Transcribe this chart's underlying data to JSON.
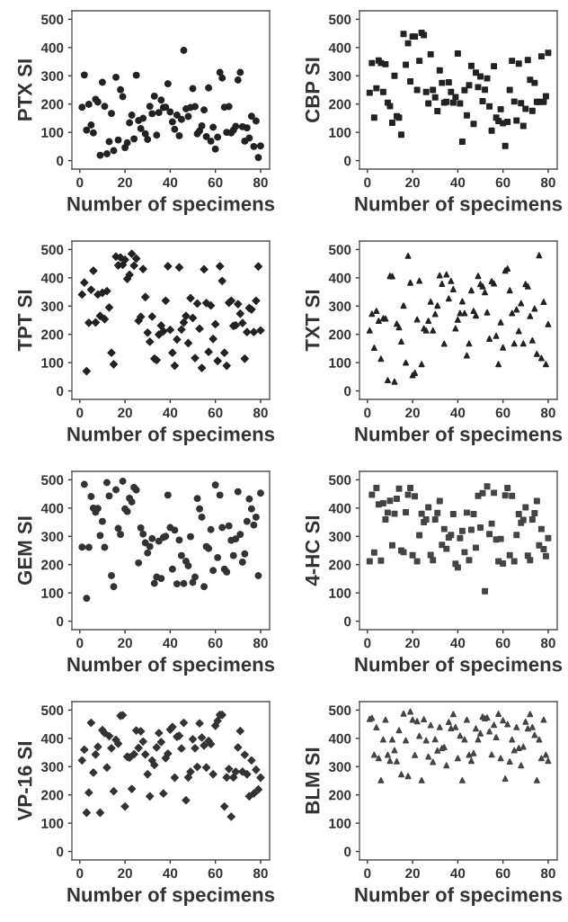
{
  "chart_data": [
    {
      "type": "scatter",
      "ylabel": "PTX SI",
      "xlabel": "Number of specimens",
      "marker": "circle",
      "xlim": [
        -3.5,
        84
      ],
      "ylim": [
        -30,
        530
      ],
      "xticks": [
        0,
        20,
        40,
        60,
        80
      ],
      "yticks": [
        0,
        100,
        200,
        300,
        400,
        500
      ],
      "grid": false,
      "x": [
        1,
        2,
        3,
        4,
        5,
        6,
        7,
        8,
        9,
        10,
        11,
        12,
        13,
        14,
        15,
        16,
        17,
        18,
        19,
        20,
        21,
        22,
        23,
        24,
        25,
        26,
        27,
        28,
        29,
        30,
        31,
        32,
        33,
        34,
        35,
        36,
        37,
        38,
        39,
        40,
        41,
        42,
        43,
        44,
        45,
        46,
        47,
        48,
        49,
        50,
        51,
        52,
        53,
        54,
        55,
        56,
        57,
        58,
        59,
        60,
        61,
        62,
        63,
        64,
        65,
        66,
        67,
        68,
        69,
        70,
        71,
        72,
        73,
        74,
        75,
        76,
        77,
        78,
        79,
        80
      ],
      "series": [
        {
          "color": "#222222",
          "values": [
            189,
            303,
            108,
            199,
            126,
            98,
            217,
            207,
            19,
            277,
            192,
            24,
            67,
            167,
            35,
            295,
            73,
            251,
            226,
            46,
            63,
            134,
            161,
            77,
            302,
            142,
            113,
            150,
            95,
            75,
            192,
            166,
            228,
            90,
            170,
            214,
            188,
            189,
            272,
            172,
            137,
            111,
            161,
            88,
            146,
            390,
            183,
            156,
            188,
            255,
            191,
            95,
            105,
            123,
            179,
            85,
            257,
            69,
            118,
            41,
            83,
            312,
            292,
            189,
            100,
            191,
            98,
            108,
            121,
            285,
            312,
            120,
            69,
            116,
            80,
            157,
            50,
            140,
            11,
            52
          ]
        }
      ]
    },
    {
      "type": "scatter",
      "ylabel": "CBP SI",
      "xlabel": "Number of specimens",
      "marker": "square",
      "xlim": [
        -3.5,
        84
      ],
      "ylim": [
        -30,
        530
      ],
      "xticks": [
        0,
        20,
        40,
        60,
        80
      ],
      "yticks": [
        0,
        100,
        200,
        300,
        400,
        500
      ],
      "grid": false,
      "x": [
        1,
        2,
        3,
        4,
        5,
        6,
        7,
        8,
        9,
        10,
        11,
        12,
        13,
        14,
        15,
        16,
        17,
        18,
        19,
        20,
        21,
        22,
        23,
        24,
        25,
        26,
        27,
        28,
        29,
        30,
        31,
        32,
        33,
        34,
        35,
        36,
        37,
        38,
        39,
        40,
        41,
        42,
        43,
        44,
        45,
        46,
        47,
        48,
        49,
        50,
        51,
        52,
        53,
        54,
        55,
        56,
        57,
        58,
        59,
        60,
        61,
        62,
        63,
        64,
        65,
        66,
        67,
        68,
        69,
        70,
        71,
        72,
        73,
        74,
        75,
        76,
        77,
        78,
        79,
        80
      ],
      "series": [
        {
          "color": "#222222",
          "values": [
            240,
            345,
            152,
            256,
            354,
            345,
            243,
            341,
            205,
            193,
            134,
            300,
            157,
            152,
            92,
            448,
            339,
            415,
            280,
            439,
            439,
            250,
            353,
            452,
            444,
            243,
            202,
            376,
            250,
            224,
            175,
            319,
            275,
            205,
            208,
            277,
            243,
            205,
            225,
            379,
            202,
            67,
            249,
            160,
            267,
            335,
            130,
            311,
            260,
            298,
            210,
            251,
            291,
            192,
            106,
            334,
            152,
            140,
            182,
            132,
            52,
            137,
            250,
            353,
            209,
            142,
            343,
            203,
            123,
            183,
            356,
            286,
            176,
            275,
            208,
            208,
            369,
            208,
            228,
            381
          ]
        }
      ]
    },
    {
      "type": "scatter",
      "ylabel": "TPT SI",
      "xlabel": "Number of specimens",
      "marker": "diamond",
      "xlim": [
        -3.5,
        84
      ],
      "ylim": [
        -30,
        530
      ],
      "xticks": [
        0,
        20,
        40,
        60,
        80
      ],
      "yticks": [
        0,
        100,
        200,
        300,
        400,
        500
      ],
      "grid": false,
      "x": [
        1,
        2,
        3,
        4,
        5,
        6,
        7,
        8,
        9,
        10,
        11,
        12,
        13,
        14,
        15,
        16,
        17,
        18,
        19,
        20,
        21,
        22,
        23,
        24,
        25,
        26,
        27,
        28,
        29,
        30,
        31,
        32,
        33,
        34,
        35,
        36,
        37,
        38,
        39,
        40,
        41,
        42,
        43,
        44,
        45,
        46,
        47,
        48,
        49,
        50,
        51,
        52,
        53,
        54,
        55,
        56,
        57,
        58,
        59,
        60,
        61,
        62,
        63,
        64,
        65,
        66,
        67,
        68,
        69,
        70,
        71,
        72,
        73,
        74,
        75,
        76,
        77,
        78,
        79,
        80
      ],
      "series": [
        {
          "color": "#222222",
          "values": [
            341,
            383,
            70,
            241,
            358,
            425,
            242,
            341,
            265,
            347,
            254,
            353,
            295,
            135,
            94,
            475,
            444,
            472,
            446,
            464,
            396,
            411,
            485,
            443,
            468,
            248,
            262,
            431,
            332,
            206,
            174,
            263,
            114,
            109,
            199,
            231,
            211,
            319,
            441,
            216,
            135,
            89,
            182,
            437,
            217,
            242,
            265,
            169,
            328,
            258,
            116,
            309,
            220,
            81,
            430,
            311,
            138,
            302,
            184,
            236,
            106,
            441,
            389,
            135,
            89,
            312,
            319,
            230,
            232,
            307,
            273,
            240,
            114,
            208,
            293,
            288,
            208,
            319,
            440,
            214
          ]
        }
      ]
    },
    {
      "type": "scatter",
      "ylabel": "TXT SI",
      "xlabel": "Number of specimens",
      "marker": "triangle",
      "xlim": [
        -3.5,
        84
      ],
      "ylim": [
        -30,
        530
      ],
      "xticks": [
        0,
        20,
        40,
        60,
        80
      ],
      "yticks": [
        0,
        100,
        200,
        300,
        400,
        500
      ],
      "grid": false,
      "x": [
        1,
        2,
        3,
        4,
        5,
        6,
        7,
        8,
        9,
        10,
        11,
        12,
        13,
        14,
        15,
        16,
        17,
        18,
        19,
        20,
        21,
        22,
        23,
        24,
        25,
        26,
        27,
        28,
        29,
        30,
        31,
        32,
        33,
        34,
        35,
        36,
        37,
        38,
        39,
        40,
        41,
        42,
        43,
        44,
        45,
        46,
        47,
        48,
        49,
        50,
        51,
        52,
        53,
        54,
        55,
        56,
        57,
        58,
        59,
        60,
        61,
        62,
        63,
        64,
        65,
        66,
        67,
        68,
        69,
        70,
        71,
        72,
        73,
        74,
        75,
        76,
        77,
        78,
        79,
        80
      ],
      "series": [
        {
          "color": "#222222",
          "values": [
            214,
            273,
            153,
            283,
            248,
            114,
            257,
            256,
            38,
            407,
            406,
            33,
            238,
            225,
            175,
            302,
            100,
            478,
            383,
            56,
            64,
            253,
            390,
            95,
            221,
            214,
            248,
            316,
            214,
            272,
            302,
            409,
            379,
            167,
            412,
            327,
            389,
            360,
            221,
            252,
            275,
            317,
            275,
            126,
            168,
            356,
            283,
            267,
            407,
            378,
            370,
            349,
            278,
            185,
            388,
            380,
            195,
            95,
            243,
            154,
            426,
            433,
            356,
            275,
            168,
            288,
            212,
            310,
            168,
            378,
            370,
            265,
            179,
            291,
            131,
            480,
            116,
            315,
            95,
            236
          ]
        }
      ]
    },
    {
      "type": "scatter",
      "ylabel": "GEM SI",
      "xlabel": "Number of specimens",
      "marker": "circle",
      "xlim": [
        -3.5,
        84
      ],
      "ylim": [
        -30,
        530
      ],
      "xticks": [
        0,
        20,
        40,
        60,
        80
      ],
      "yticks": [
        0,
        100,
        200,
        300,
        400,
        500
      ],
      "grid": false,
      "x": [
        1,
        2,
        3,
        4,
        5,
        6,
        7,
        8,
        9,
        10,
        11,
        12,
        13,
        14,
        15,
        16,
        17,
        18,
        19,
        20,
        21,
        22,
        23,
        24,
        25,
        26,
        27,
        28,
        29,
        30,
        31,
        32,
        33,
        34,
        35,
        36,
        37,
        38,
        39,
        40,
        41,
        42,
        43,
        44,
        45,
        46,
        47,
        48,
        49,
        50,
        51,
        52,
        53,
        54,
        55,
        56,
        57,
        58,
        59,
        60,
        61,
        62,
        63,
        64,
        65,
        66,
        67,
        68,
        69,
        70,
        71,
        72,
        73,
        74,
        75,
        76,
        77,
        78,
        79,
        80
      ],
      "series": [
        {
          "color": "#333333",
          "values": [
            262,
            484,
            81,
            261,
            441,
            400,
            385,
            399,
            303,
            353,
            261,
            490,
            443,
            161,
            122,
            465,
            328,
            307,
            495,
            397,
            388,
            435,
            422,
            473,
            464,
            206,
            330,
            308,
            277,
            241,
            264,
            292,
            134,
            156,
            283,
            151,
            296,
            300,
            446,
            331,
            184,
            322,
            132,
            287,
            232,
            133,
            212,
            196,
            299,
            137,
            156,
            434,
            397,
            368,
            122,
            264,
            257,
            324,
            179,
            482,
            225,
            446,
            331,
            184,
            174,
            337,
            286,
            232,
            291,
            458,
            307,
            209,
            238,
            353,
            432,
            397,
            340,
            368,
            161,
            453
          ]
        }
      ]
    },
    {
      "type": "scatter",
      "ylabel": "4-HC SI",
      "xlabel": "Number of specimens",
      "marker": "square",
      "xlim": [
        -3.5,
        84
      ],
      "ylim": [
        -30,
        530
      ],
      "xticks": [
        0,
        20,
        40,
        60,
        80
      ],
      "yticks": [
        0,
        100,
        200,
        300,
        400,
        500
      ],
      "grid": false,
      "x": [
        1,
        2,
        3,
        4,
        5,
        6,
        7,
        8,
        9,
        10,
        11,
        12,
        13,
        14,
        15,
        16,
        17,
        18,
        19,
        20,
        21,
        22,
        23,
        24,
        25,
        26,
        27,
        28,
        29,
        30,
        31,
        32,
        33,
        34,
        35,
        36,
        37,
        38,
        39,
        40,
        41,
        42,
        43,
        44,
        45,
        46,
        47,
        48,
        49,
        50,
        51,
        52,
        53,
        54,
        55,
        56,
        57,
        58,
        59,
        60,
        61,
        62,
        63,
        64,
        65,
        66,
        67,
        68,
        69,
        70,
        71,
        72,
        73,
        74,
        75,
        76,
        77,
        78,
        79,
        80
      ],
      "series": [
        {
          "color": "#444444",
          "values": [
            212,
            447,
            243,
            471,
            413,
            214,
            417,
            360,
            384,
            426,
            268,
            380,
            433,
            469,
            250,
            244,
            385,
            447,
            471,
            233,
            442,
            212,
            304,
            380,
            350,
            360,
            403,
            234,
            216,
            360,
            383,
            425,
            270,
            326,
            256,
            296,
            305,
            379,
            203,
            190,
            294,
            319,
            244,
            384,
            216,
            323,
            379,
            260,
            443,
            331,
            453,
            106,
            477,
            308,
            345,
            454,
            289,
            212,
            291,
            204,
            445,
            471,
            233,
            443,
            212,
            305,
            379,
            348,
            358,
            403,
            232,
            216,
            360,
            382,
            425,
            268,
            326,
            255,
            230,
            294
          ]
        }
      ]
    },
    {
      "type": "scatter",
      "ylabel": "VP-16 SI",
      "xlabel": "Number of specimens",
      "marker": "diamond",
      "xlim": [
        -3.5,
        84
      ],
      "ylim": [
        -30,
        530
      ],
      "xticks": [
        0,
        20,
        40,
        60,
        80
      ],
      "yticks": [
        0,
        100,
        200,
        300,
        400,
        500
      ],
      "grid": false,
      "x": [
        1,
        2,
        3,
        4,
        5,
        6,
        7,
        8,
        9,
        10,
        11,
        12,
        13,
        14,
        15,
        16,
        17,
        18,
        19,
        20,
        21,
        22,
        23,
        24,
        25,
        26,
        27,
        28,
        29,
        30,
        31,
        32,
        33,
        34,
        35,
        36,
        37,
        38,
        39,
        40,
        41,
        42,
        43,
        44,
        45,
        46,
        47,
        48,
        49,
        50,
        51,
        52,
        53,
        54,
        55,
        56,
        57,
        58,
        59,
        60,
        61,
        62,
        63,
        64,
        65,
        66,
        67,
        68,
        69,
        70,
        71,
        72,
        73,
        74,
        75,
        76,
        77,
        78,
        79,
        80
      ],
      "series": [
        {
          "color": "#333333",
          "values": [
            322,
            360,
            137,
            208,
            455,
            279,
            343,
            370,
            137,
            429,
            419,
            297,
            408,
            365,
            213,
            395,
            381,
            480,
            482,
            159,
            335,
            332,
            221,
            344,
            428,
            366,
            425,
            389,
            343,
            273,
            195,
            322,
            306,
            368,
            419,
            387,
            205,
            330,
            346,
            431,
            440,
            261,
            406,
            409,
            364,
            455,
            181,
            262,
            282,
            397,
            365,
            299,
            453,
            403,
            375,
            297,
            391,
            380,
            273,
            445,
            462,
            483,
            483,
            159,
            262,
            292,
            123,
            262,
            282,
            368,
            426,
            282,
            342,
            273,
            195,
            322,
            205,
            289,
            219,
            261
          ]
        }
      ]
    },
    {
      "type": "scatter",
      "ylabel": "BLM SI",
      "xlabel": "Number of specimens",
      "marker": "triangle",
      "xlim": [
        -3.5,
        84
      ],
      "ylim": [
        -30,
        530
      ],
      "xticks": [
        0,
        20,
        40,
        60,
        80
      ],
      "yticks": [
        0,
        100,
        200,
        300,
        400,
        500
      ],
      "grid": false,
      "x": [
        1,
        2,
        3,
        4,
        5,
        6,
        7,
        8,
        9,
        10,
        11,
        12,
        13,
        14,
        15,
        16,
        17,
        18,
        19,
        20,
        21,
        22,
        23,
        24,
        25,
        26,
        27,
        28,
        29,
        30,
        31,
        32,
        33,
        34,
        35,
        36,
        37,
        38,
        39,
        40,
        41,
        42,
        43,
        44,
        45,
        46,
        47,
        48,
        49,
        50,
        51,
        52,
        53,
        54,
        55,
        56,
        57,
        58,
        59,
        60,
        61,
        62,
        63,
        64,
        65,
        66,
        67,
        68,
        69,
        70,
        71,
        72,
        73,
        74,
        75,
        76,
        77,
        78,
        79,
        80
      ],
      "series": [
        {
          "color": "#444444",
          "values": [
            469,
            473,
            342,
            439,
            330,
            252,
            396,
            466,
            342,
            321,
            396,
            358,
            319,
            429,
            273,
            488,
            393,
            267,
            495,
            466,
            341,
            461,
            409,
            252,
            468,
            393,
            336,
            447,
            317,
            397,
            357,
            440,
            366,
            369,
            305,
            458,
            436,
            486,
            440,
            330,
            410,
            252,
            396,
            466,
            342,
            321,
            348,
            435,
            396,
            418,
            477,
            471,
            474,
            425,
            343,
            448,
            404,
            487,
            330,
            464,
            258,
            450,
            318,
            396,
            358,
            440,
            366,
            305,
            371,
            459,
            435,
            486,
            440,
            412,
            252,
            396,
            330,
            466,
            342,
            321
          ]
        }
      ]
    }
  ]
}
